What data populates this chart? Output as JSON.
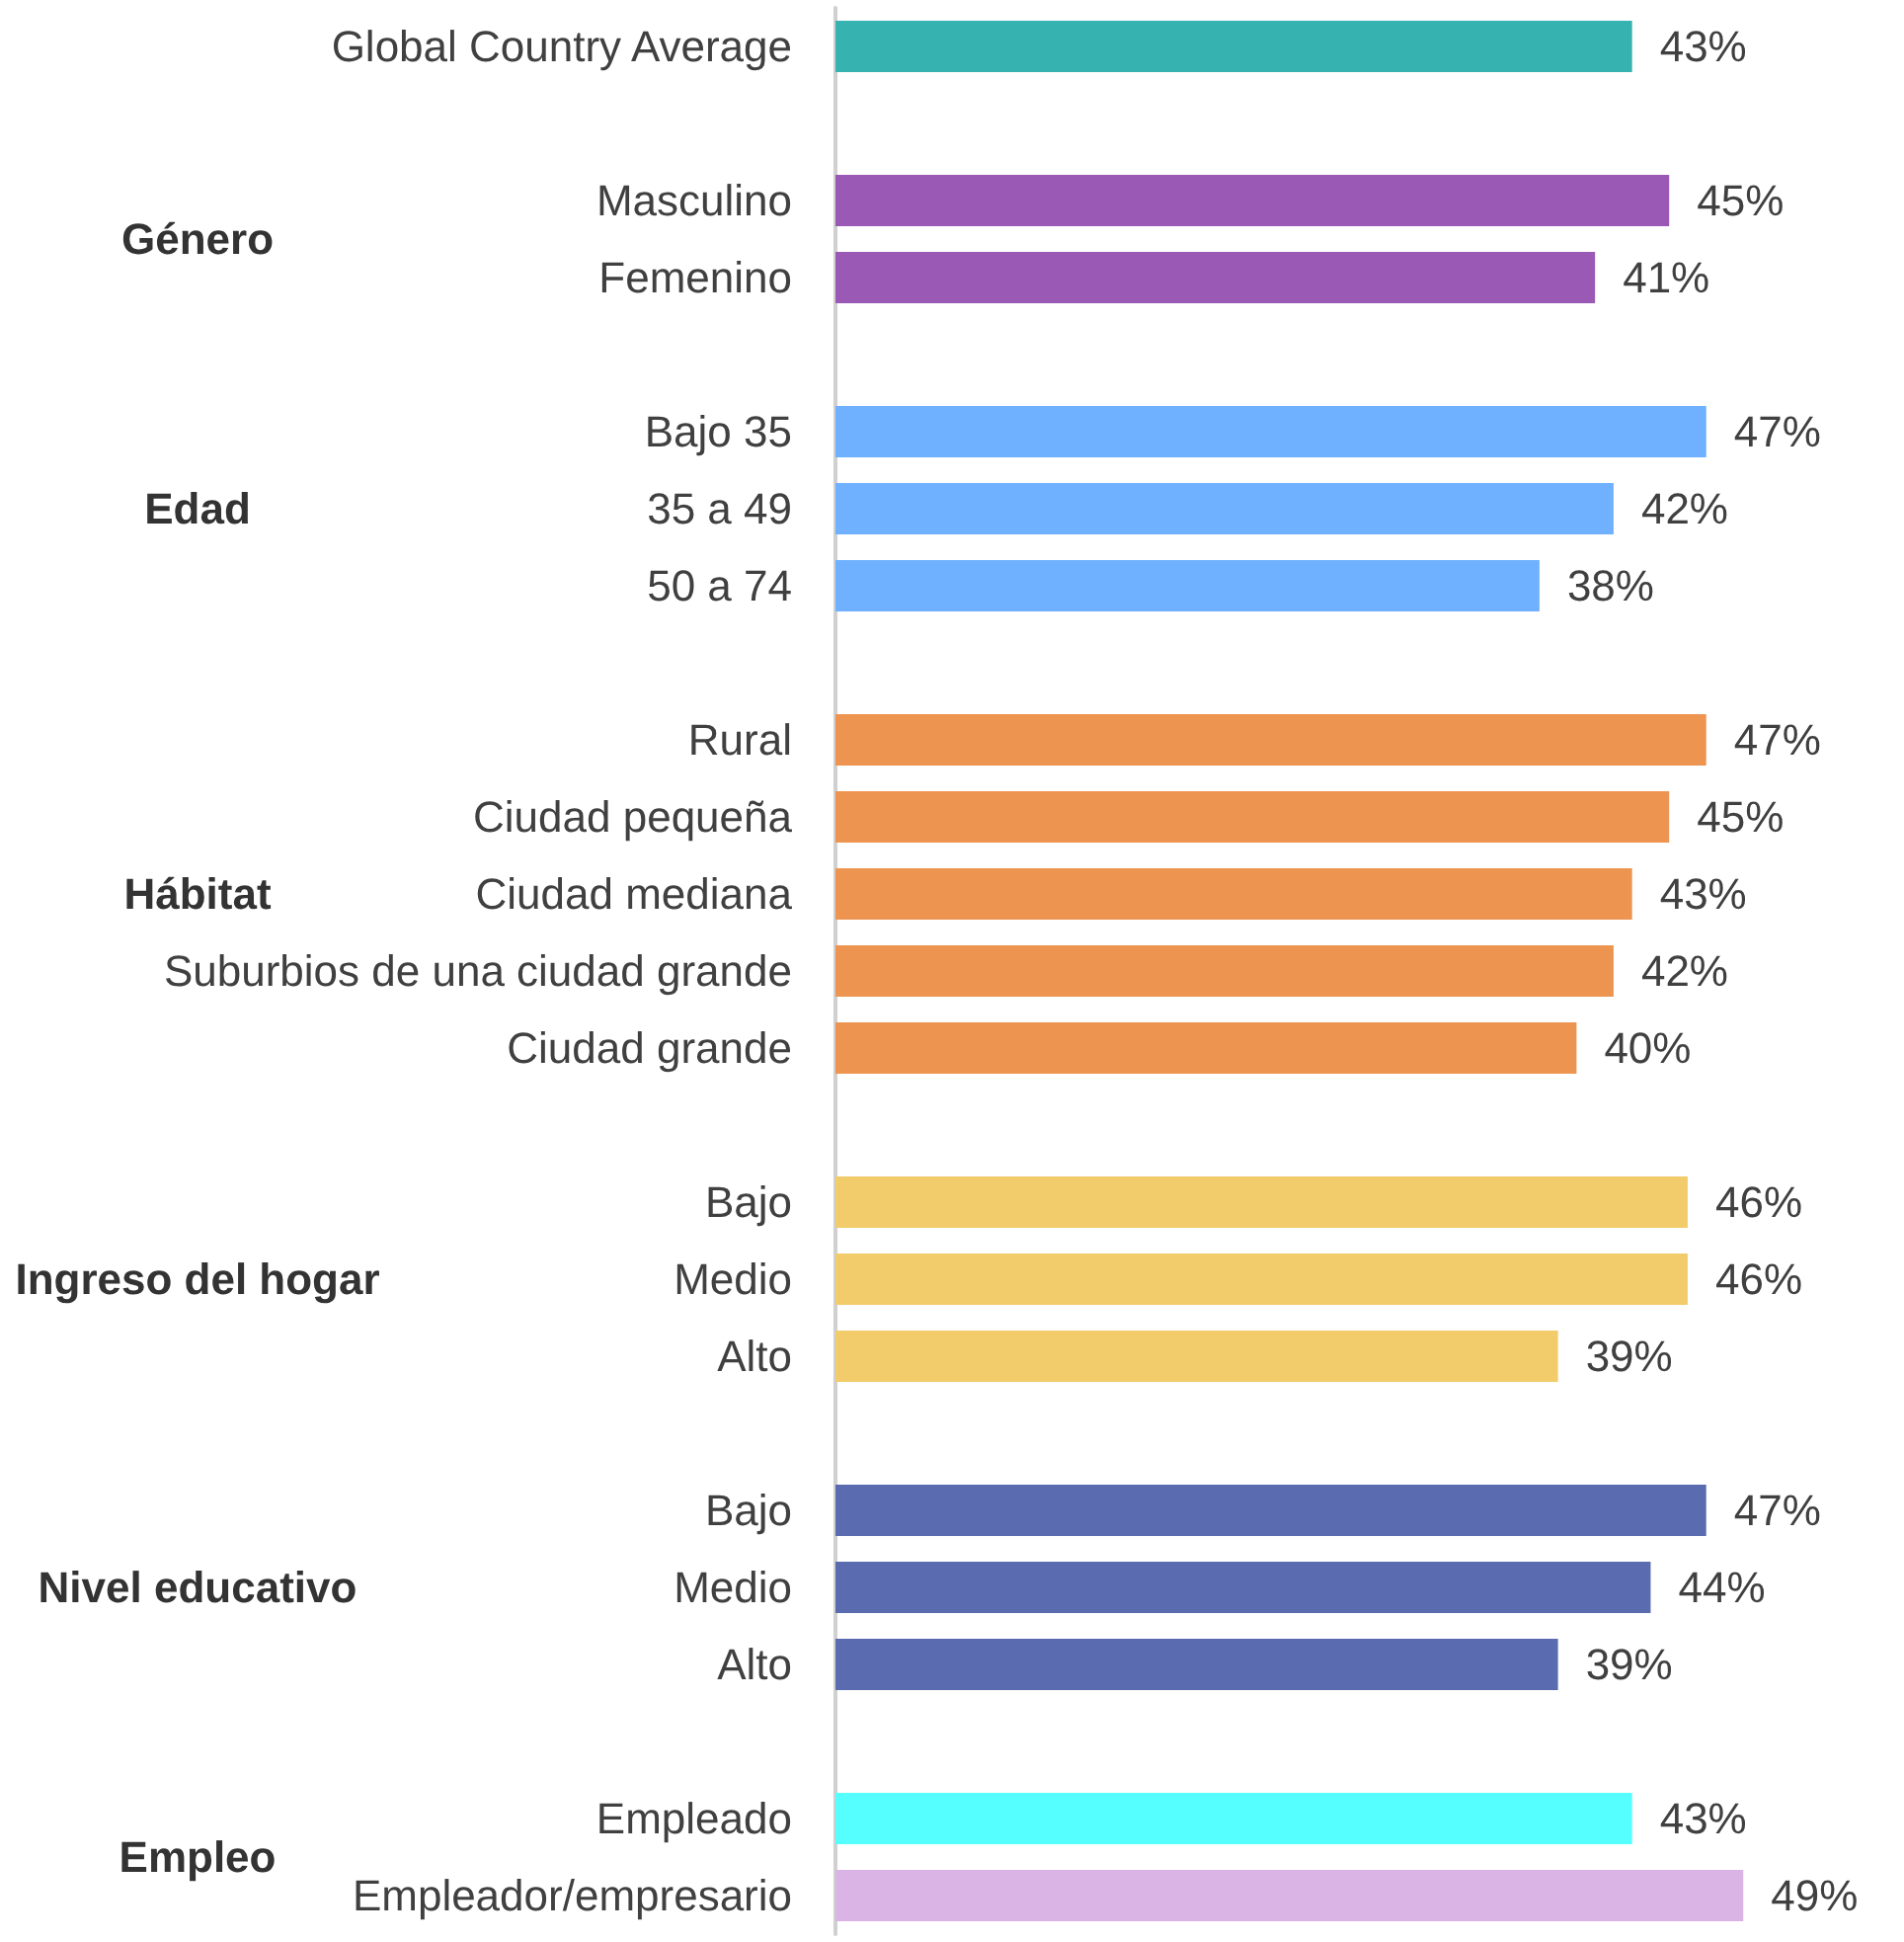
{
  "chart_data": {
    "type": "bar",
    "orientation": "horizontal",
    "categories": [
      "Global Country Average",
      null,
      "Masculino",
      "Femenino",
      null,
      "Bajo 35",
      "35 a 49",
      "50 a 74",
      null,
      "Rural",
      "Ciudad pequeña",
      "Ciudad mediana",
      "Suburbios de una ciudad grande",
      "Ciudad grande",
      null,
      "Bajo",
      "Medio",
      "Alto",
      null,
      "Bajo",
      "Medio",
      "Alto",
      null,
      "Empleado",
      "Empleador/empresario"
    ],
    "values": [
      43,
      null,
      45,
      41,
      null,
      47,
      42,
      38,
      null,
      47,
      45,
      43,
      42,
      40,
      null,
      46,
      46,
      39,
      null,
      47,
      44,
      39,
      null,
      43,
      49
    ],
    "value_labels": [
      "43%",
      null,
      "45%",
      "41%",
      null,
      "47%",
      "42%",
      "38%",
      null,
      "47%",
      "45%",
      "43%",
      "42%",
      "40%",
      null,
      "46%",
      "46%",
      "39%",
      null,
      "47%",
      "44%",
      "39%",
      null,
      "43%",
      "49%"
    ],
    "colors": [
      "#36b3b0",
      null,
      "#9b59b6",
      "#9b59b6",
      null,
      "#6fb0ff",
      "#6fb0ff",
      "#6fb0ff",
      null,
      "#ed9450",
      "#ed9450",
      "#ed9450",
      "#ed9450",
      "#ed9450",
      null,
      "#f2cc6b",
      "#f2cc6b",
      "#f2cc6b",
      null,
      "#5a6bb0",
      "#5a6bb0",
      "#5a6bb0",
      null,
      "#56ffff",
      "#dbb4e6"
    ],
    "annotations": [
      "Género",
      "Edad",
      "Hábitat",
      "Ingreso del hogar",
      "Nivel educativo",
      "Empleo"
    ],
    "grid": false
  }
}
